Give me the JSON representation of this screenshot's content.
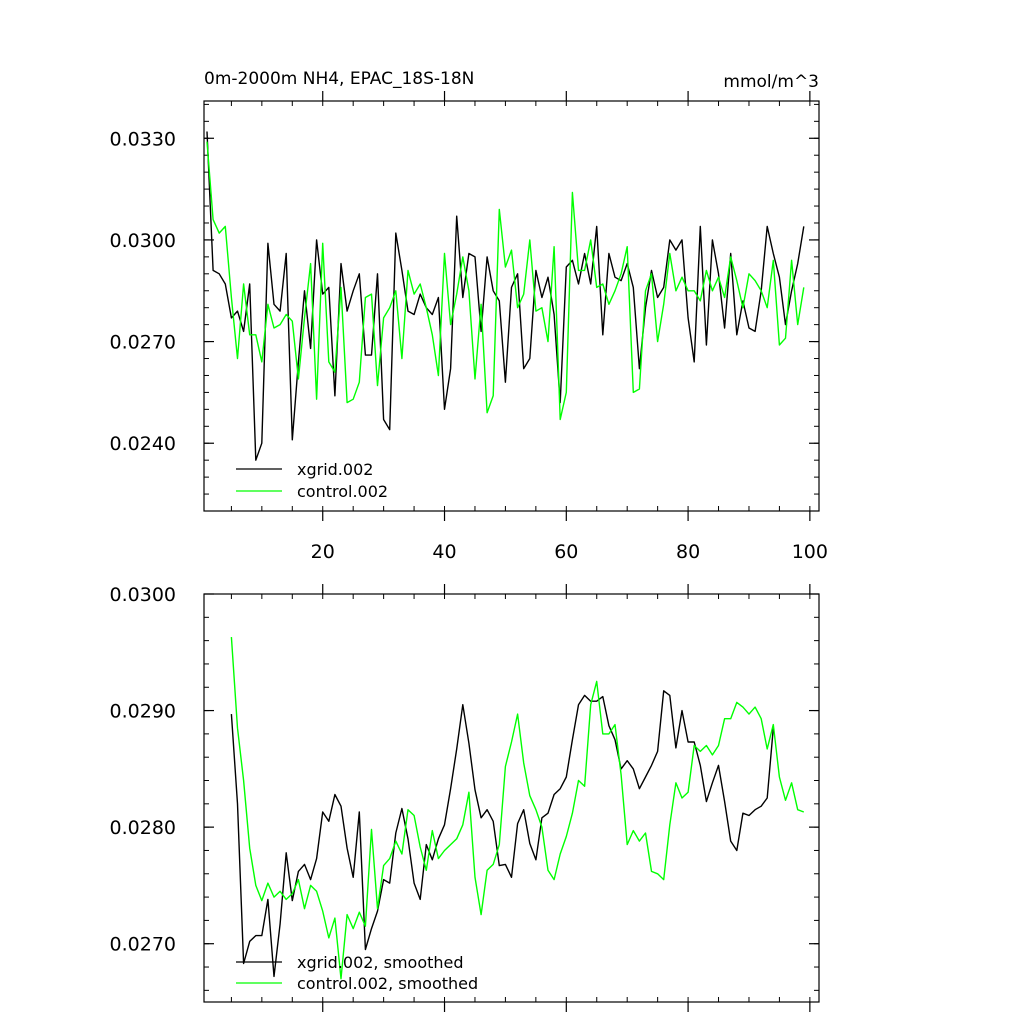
{
  "chart_data": [
    {
      "type": "line",
      "title": "0m-2000m NH4, EPAC_18S-18N",
      "units": "mmol/m^3",
      "xlim": [
        0.5,
        101.5
      ],
      "ylim": [
        0.022,
        0.0341
      ],
      "yticks": [
        "0.0330",
        "0.0300",
        "0.0270",
        "0.0240"
      ],
      "xticks": [
        "20",
        "40",
        "60",
        "80",
        "100"
      ],
      "legend_position": "bottom-left",
      "series": [
        {
          "name": "xgrid.002",
          "color": "#000000",
          "x_start": 1,
          "values": [
            0.0332,
            0.0291,
            0.029,
            0.0287,
            0.0277,
            0.0279,
            0.0273,
            0.0287,
            0.0235,
            0.024,
            0.0299,
            0.0281,
            0.0279,
            0.0296,
            0.0241,
            0.0264,
            0.0285,
            0.0268,
            0.03,
            0.0284,
            0.0286,
            0.0254,
            0.0293,
            0.0279,
            0.0285,
            0.029,
            0.0266,
            0.0266,
            0.029,
            0.0247,
            0.0244,
            0.0302,
            0.0291,
            0.0279,
            0.0278,
            0.0284,
            0.028,
            0.0278,
            0.0283,
            0.025,
            0.0262,
            0.0307,
            0.0283,
            0.0296,
            0.0295,
            0.0273,
            0.0295,
            0.0285,
            0.0282,
            0.0258,
            0.0286,
            0.029,
            0.0262,
            0.0265,
            0.0291,
            0.0283,
            0.0289,
            0.0278,
            0.0252,
            0.0292,
            0.0294,
            0.0287,
            0.0296,
            0.0287,
            0.0304,
            0.0272,
            0.0296,
            0.0289,
            0.0288,
            0.0293,
            0.0286,
            0.0262,
            0.028,
            0.0291,
            0.0283,
            0.0286,
            0.03,
            0.0297,
            0.03,
            0.0277,
            0.0264,
            0.0304,
            0.0269,
            0.03,
            0.029,
            0.0274,
            0.0296,
            0.0272,
            0.0282,
            0.0274,
            0.0273,
            0.0285,
            0.0304,
            0.0296,
            0.0289,
            0.0275,
            0.0285,
            0.0293,
            0.0304
          ]
        },
        {
          "name": "control.002",
          "color": "#00ff00",
          "x_start": 1,
          "values": [
            0.0329,
            0.0306,
            0.0302,
            0.0304,
            0.0283,
            0.0265,
            0.0287,
            0.0272,
            0.0272,
            0.0264,
            0.0281,
            0.0274,
            0.0275,
            0.0278,
            0.0276,
            0.0259,
            0.0277,
            0.0293,
            0.0253,
            0.0299,
            0.0264,
            0.0261,
            0.0286,
            0.0252,
            0.0253,
            0.0258,
            0.0283,
            0.0284,
            0.0257,
            0.0277,
            0.028,
            0.0285,
            0.0265,
            0.0291,
            0.0284,
            0.0287,
            0.028,
            0.0272,
            0.026,
            0.0296,
            0.0275,
            0.0284,
            0.0295,
            0.0285,
            0.0259,
            0.0281,
            0.0249,
            0.0254,
            0.0309,
            0.0292,
            0.0297,
            0.028,
            0.0284,
            0.03,
            0.0279,
            0.028,
            0.027,
            0.0298,
            0.0247,
            0.0255,
            0.0314,
            0.0291,
            0.0291,
            0.03,
            0.0286,
            0.0287,
            0.0281,
            0.0285,
            0.029,
            0.0298,
            0.0255,
            0.0256,
            0.0285,
            0.029,
            0.027,
            0.0281,
            0.0296,
            0.0285,
            0.0289,
            0.0285,
            0.0285,
            0.0282,
            0.0291,
            0.0285,
            0.0289,
            0.0283,
            0.0295,
            0.0288,
            0.028,
            0.029,
            0.0288,
            0.0285,
            0.028,
            0.0294,
            0.0269,
            0.0271,
            0.0294,
            0.0275,
            0.0286
          ]
        }
      ]
    },
    {
      "type": "line",
      "title": "",
      "units": "",
      "xlim": [
        0.5,
        101.5
      ],
      "ylim": [
        0.0265,
        0.03
      ],
      "yticks": [
        "0.0300",
        "0.0290",
        "0.0280",
        "0.0270"
      ],
      "xticks": [],
      "legend_position": "bottom-left",
      "series": [
        {
          "name": "xgrid.002, smoothed",
          "color": "#000000",
          "x_start": 5,
          "values": [
            0.02897,
            0.0282,
            0.02683,
            0.02702,
            0.02707,
            0.02707,
            0.02738,
            0.02672,
            0.02717,
            0.02778,
            0.02737,
            0.02762,
            0.02768,
            0.02755,
            0.02773,
            0.02813,
            0.02805,
            0.02828,
            0.02818,
            0.02782,
            0.02757,
            0.02813,
            0.02695,
            0.02713,
            0.02728,
            0.02755,
            0.02752,
            0.02795,
            0.02816,
            0.0279,
            0.02752,
            0.02738,
            0.02785,
            0.02772,
            0.0279,
            0.02802,
            0.02833,
            0.02867,
            0.02905,
            0.02872,
            0.02832,
            0.02808,
            0.02815,
            0.02805,
            0.02767,
            0.02768,
            0.02757,
            0.02803,
            0.02815,
            0.02786,
            0.02772,
            0.02808,
            0.02812,
            0.02828,
            0.02833,
            0.02843,
            0.02875,
            0.02905,
            0.02913,
            0.02908,
            0.02908,
            0.02912,
            0.02887,
            0.02875,
            0.0285,
            0.02857,
            0.0285,
            0.02833,
            0.02843,
            0.02853,
            0.02865,
            0.02917,
            0.02913,
            0.02868,
            0.029,
            0.02873,
            0.02873,
            0.02853,
            0.02822,
            0.02838,
            0.02853,
            0.02822,
            0.02788,
            0.0278,
            0.02812,
            0.0281,
            0.02815,
            0.02818,
            0.02825,
            0.02885
          ]
        },
        {
          "name": "control.002, smoothed",
          "color": "#00ff00",
          "x_start": 5,
          "values": [
            0.02963,
            0.02885,
            0.0284,
            0.02782,
            0.0275,
            0.02737,
            0.02752,
            0.0274,
            0.02745,
            0.02738,
            0.02743,
            0.02755,
            0.0273,
            0.0275,
            0.02745,
            0.02728,
            0.02705,
            0.02722,
            0.0267,
            0.02725,
            0.02713,
            0.02727,
            0.02715,
            0.02798,
            0.0273,
            0.02767,
            0.02773,
            0.02788,
            0.02777,
            0.02815,
            0.0281,
            0.02783,
            0.02763,
            0.02797,
            0.02773,
            0.0278,
            0.02785,
            0.0279,
            0.02802,
            0.0283,
            0.02757,
            0.02725,
            0.02763,
            0.02768,
            0.02785,
            0.02852,
            0.02873,
            0.02897,
            0.02855,
            0.02827,
            0.02815,
            0.028,
            0.02763,
            0.02755,
            0.02777,
            0.02792,
            0.02812,
            0.0284,
            0.02835,
            0.02905,
            0.02925,
            0.0288,
            0.0288,
            0.02888,
            0.02845,
            0.02785,
            0.02797,
            0.02788,
            0.02795,
            0.02762,
            0.0276,
            0.02755,
            0.02802,
            0.02838,
            0.02825,
            0.0283,
            0.0287,
            0.02865,
            0.0287,
            0.02862,
            0.0287,
            0.02893,
            0.02893,
            0.02907,
            0.02903,
            0.02897,
            0.02903,
            0.02893,
            0.02867,
            0.02888,
            0.02843,
            0.02823,
            0.02838,
            0.02815,
            0.02813
          ]
        }
      ]
    }
  ]
}
